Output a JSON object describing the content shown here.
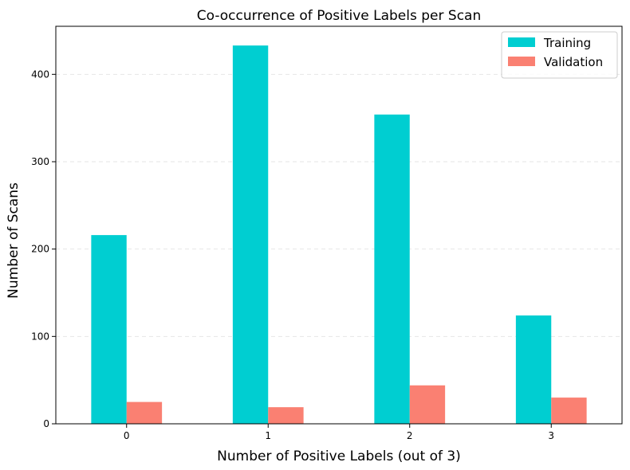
{
  "chart_data": {
    "type": "bar",
    "title": "Co-occurrence of Positive Labels per Scan",
    "xlabel": "Number of Positive Labels (out of 3)",
    "ylabel": "Number of Scans",
    "categories": [
      "0",
      "1",
      "2",
      "3"
    ],
    "series": [
      {
        "name": "Training",
        "values": [
          216,
          433,
          354,
          124
        ],
        "color": "#00CED1"
      },
      {
        "name": "Validation",
        "values": [
          25,
          19,
          44,
          30
        ],
        "color": "#FA8072"
      }
    ],
    "ylim": [
      0,
      455
    ],
    "yticks": [
      0,
      100,
      200,
      300,
      400
    ],
    "grid": "y-dashed",
    "legend_position": "top-right"
  }
}
